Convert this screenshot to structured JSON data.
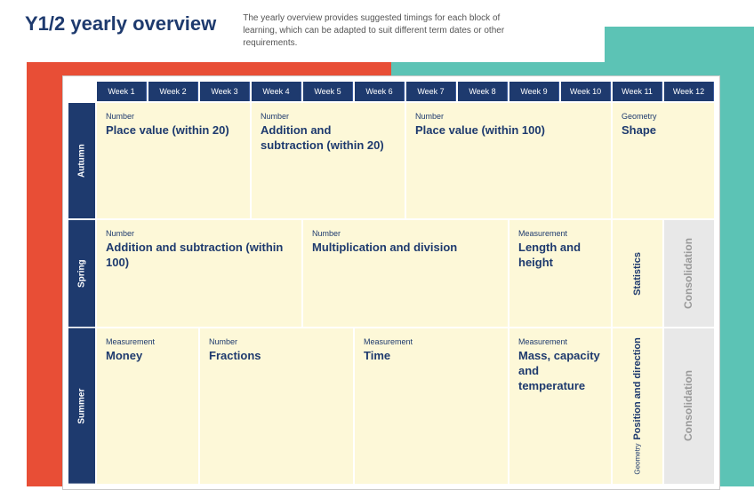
{
  "header": {
    "title": "Y1/2 yearly overview",
    "subtitle": "The yearly overview provides suggested timings for each block of learning, which can be adapted to suit different term dates or other requirements."
  },
  "weeks": [
    "Week 1",
    "Week 2",
    "Week 3",
    "Week 4",
    "Week 5",
    "Week 6",
    "Week 7",
    "Week 8",
    "Week 9",
    "Week 10",
    "Week 11",
    "Week 12"
  ],
  "terms": [
    {
      "name": "Autumn",
      "min_height": 130,
      "blocks": [
        {
          "span": 3,
          "cat": "Number",
          "topic": "Place value (within 20)",
          "vert": false
        },
        {
          "span": 3,
          "cat": "Number",
          "topic": "Addition and subtraction (within 20)",
          "vert": false
        },
        {
          "span": 4,
          "cat": "Number",
          "topic": "Place value (within 100)",
          "vert": false
        },
        {
          "span": 2,
          "cat": "Geometry",
          "topic": "Shape",
          "vert": false
        }
      ]
    },
    {
      "name": "Spring",
      "min_height": 120,
      "blocks": [
        {
          "span": 4,
          "cat": "Number",
          "topic": "Addition and subtraction (within 100)",
          "vert": false
        },
        {
          "span": 4,
          "cat": "Number",
          "topic": "Multiplication and division",
          "vert": false
        },
        {
          "span": 2,
          "cat": "Measurement",
          "topic": "Length and height",
          "vert": false
        },
        {
          "span": 1,
          "cat": "",
          "topic": "Statistics",
          "vert": true
        },
        {
          "span": 1,
          "cat": "",
          "topic": "Consolidation",
          "consol": true
        }
      ]
    },
    {
      "name": "Summer",
      "min_height": 130,
      "blocks": [
        {
          "span": 2,
          "cat": "Measurement",
          "topic": "Money",
          "vert": false
        },
        {
          "span": 3,
          "cat": "Number",
          "topic": "Fractions",
          "vert": false
        },
        {
          "span": 3,
          "cat": "Measurement",
          "topic": "Time",
          "vert": false
        },
        {
          "span": 2,
          "cat": "Measurement",
          "topic": "Mass, capacity and temperature",
          "vert": false
        },
        {
          "span": 1,
          "cat": "Geometry",
          "topic": "Position and direction",
          "vert": true
        },
        {
          "span": 1,
          "cat": "",
          "topic": "Consolidation",
          "consol": true
        }
      ]
    }
  ],
  "colors": {
    "navy": "#1e3a6e",
    "cream": "#fdf8d8",
    "grey": "#e8e8e8",
    "red": "#e84e36",
    "teal": "#5cc3b5"
  }
}
